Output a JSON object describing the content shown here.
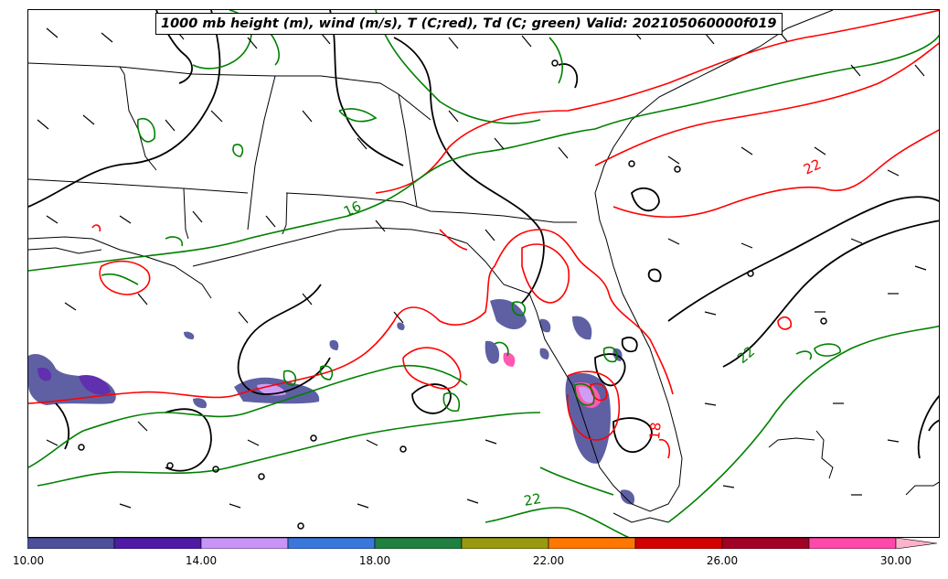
{
  "title": "1000 mb height (m), wind (m/s), T (C;red), Td (C; green) Valid: 202105060000f019",
  "contour_labels": {
    "td_16": "16",
    "td_22_south": "22",
    "td_22_east": "22",
    "t_22": "22",
    "t_18": "18"
  },
  "colors": {
    "height": "#000000",
    "temperature": "#ff0000",
    "dewpoint": "#008000",
    "coastline": "#000000"
  },
  "colorbar": {
    "tick_labels": [
      "10.00",
      "14.00",
      "18.00",
      "22.00",
      "26.00",
      "30.00"
    ],
    "colors": [
      "#4d4f9a",
      "#4f1aa6",
      "#c994f5",
      "#3a77dd",
      "#1f8040",
      "#9a9a10",
      "#ff7700",
      "#d30000",
      "#a30025",
      "#ff48aa",
      "#ffb0cc"
    ]
  }
}
